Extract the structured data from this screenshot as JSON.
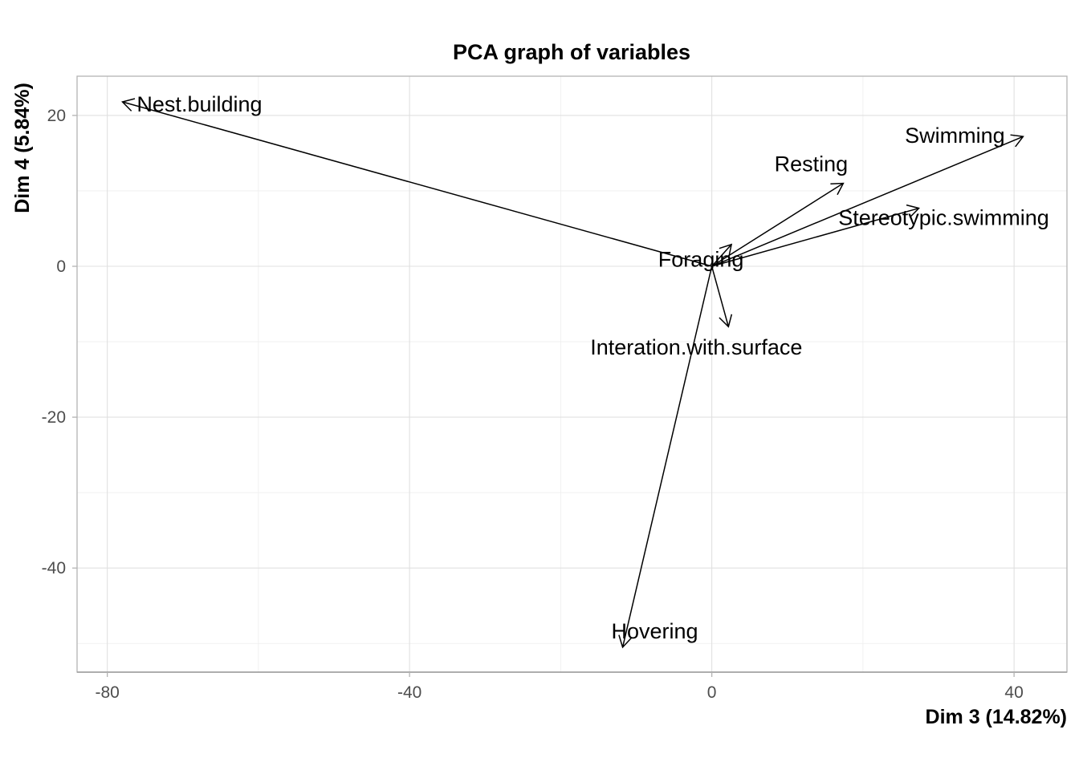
{
  "chart_data": {
    "type": "scatter",
    "title": "PCA graph of variables",
    "xlabel": "Dim 3 (14.82%)",
    "ylabel": "Dim 4 (5.84%)",
    "xlim": [
      -84,
      47
    ],
    "ylim": [
      -53.8,
      25.2
    ],
    "xticks": [
      -80,
      -40,
      0,
      40
    ],
    "yticks": [
      -40,
      -20,
      0,
      20
    ],
    "xminor": [
      -60,
      -20,
      20
    ],
    "yminor": [
      -50,
      -30,
      -10,
      10
    ],
    "grid": true,
    "arrows": [
      {
        "name": "Nest.building",
        "x": -78,
        "y": 21.8
      },
      {
        "name": "Swimming",
        "x": 41.2,
        "y": 17.2
      },
      {
        "name": "Resting",
        "x": 17.4,
        "y": 11
      },
      {
        "name": "Stereotypic.swimming",
        "x": 27.4,
        "y": 7.7
      },
      {
        "name": "Foraging",
        "x": 2.6,
        "y": 2.9
      },
      {
        "name": "Interation.with.surface",
        "x": 2.2,
        "y": -8
      },
      {
        "name": "Hovering",
        "x": -11.8,
        "y": -50.5
      }
    ]
  }
}
